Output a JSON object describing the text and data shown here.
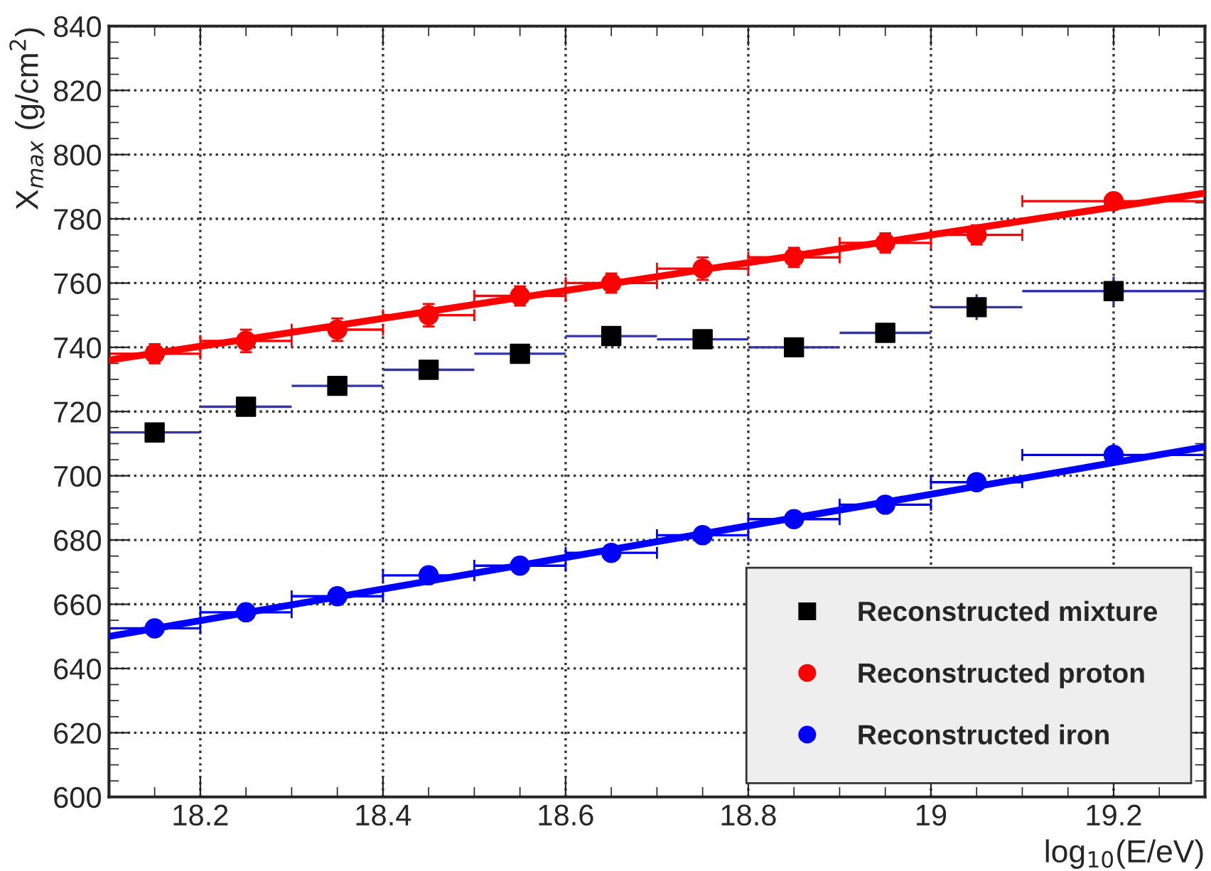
{
  "chart_data": {
    "type": "scatter",
    "xlabel": "log$_{10}$(E/eV)",
    "ylabel": "X$_{max}$ (g/cm$^{2}$)",
    "xlim": [
      18.1,
      19.3
    ],
    "ylim": [
      600,
      840
    ],
    "xticks": [
      18.2,
      18.4,
      18.6,
      18.8,
      19,
      19.2
    ],
    "yticks": [
      600,
      620,
      640,
      660,
      680,
      700,
      720,
      740,
      760,
      780,
      800,
      820,
      840
    ],
    "grid": true,
    "legend": "bottom right",
    "series": [
      {
        "name": "Reconstructed mixture",
        "color": "#000000",
        "marker": "square",
        "x": [
          18.15,
          18.25,
          18.35,
          18.45,
          18.55,
          18.65,
          18.75,
          18.85,
          18.95,
          19.05,
          19.2
        ],
        "values": [
          713.5,
          721.5,
          728,
          733,
          738,
          743.5,
          742.5,
          740,
          744.5,
          752.5,
          757.5
        ],
        "errors": [
          null,
          null,
          null,
          null,
          null,
          null,
          null,
          null,
          null,
          4,
          4.5
        ],
        "xerrors": [
          0.05,
          0.05,
          0.05,
          0.05,
          0.05,
          0.05,
          0.05,
          0.05,
          0.05,
          0.05,
          0.1
        ]
      },
      {
        "name": "Reconstructed proton",
        "color": "#ff0000",
        "marker": "circle",
        "x": [
          18.15,
          18.25,
          18.35,
          18.45,
          18.55,
          18.65,
          18.75,
          18.85,
          18.95,
          19.05,
          19.2
        ],
        "values": [
          738,
          742,
          745.5,
          750,
          756,
          760,
          764.5,
          768,
          772.5,
          775,
          785.5
        ],
        "errors": [
          3,
          3.5,
          3.5,
          3.5,
          3,
          3,
          3.5,
          3,
          3,
          3,
          2
        ],
        "xerrors": [
          0.05,
          0.05,
          0.05,
          0.05,
          0.05,
          0.05,
          0.05,
          0.05,
          0.05,
          0.05,
          0.1
        ]
      },
      {
        "name": "Reconstructed iron",
        "color": "#0000ff",
        "marker": "circle",
        "x": [
          18.15,
          18.25,
          18.35,
          18.45,
          18.55,
          18.65,
          18.75,
          18.85,
          18.95,
          19.05,
          19.2
        ],
        "values": [
          652.5,
          657.5,
          662.5,
          669,
          672,
          676,
          681.5,
          686.5,
          691,
          698,
          706.5
        ],
        "xerrors": [
          0.05,
          0.05,
          0.05,
          0.05,
          0.05,
          0.05,
          0.05,
          0.05,
          0.05,
          0.05,
          0.1
        ]
      },
      {
        "type": "line",
        "color": "#ff0000",
        "x": [
          18.1,
          19.3
        ],
        "values": [
          736,
          788
        ]
      },
      {
        "type": "line",
        "color": "#0000ff",
        "x": [
          18.1,
          19.3
        ],
        "values": [
          650,
          709
        ]
      }
    ]
  }
}
